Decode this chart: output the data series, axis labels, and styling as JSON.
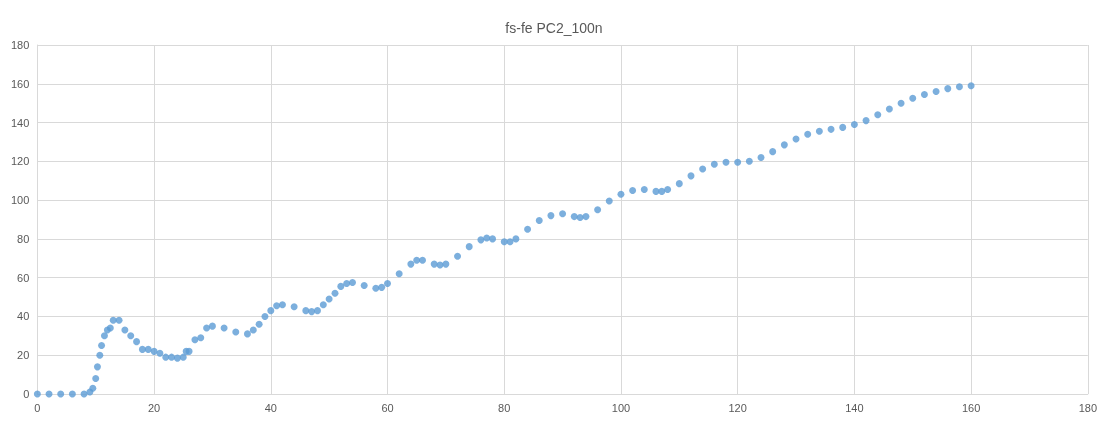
{
  "chart_data": {
    "type": "scatter",
    "title": "fs-fe PC2_100n",
    "xlim": [
      0,
      180
    ],
    "xticks": [
      0,
      20,
      40,
      60,
      80,
      100,
      120,
      140,
      160,
      180
    ],
    "ylim": [
      0,
      180
    ],
    "yticks": [
      0,
      20,
      40,
      60,
      80,
      100,
      120,
      140,
      160,
      180
    ],
    "grid": true,
    "marker": "circle",
    "series": [
      {
        "color": "#5b9bd5",
        "x": [
          0,
          2,
          4,
          6,
          8,
          9,
          9.5,
          10,
          10.3,
          10.7,
          11,
          11.5,
          12,
          12.5,
          13,
          14,
          15,
          16,
          17,
          18,
          19,
          20,
          21,
          22,
          23,
          24,
          25,
          25.5,
          26,
          27,
          28,
          29,
          30,
          32,
          34,
          36,
          37,
          38,
          39,
          40,
          41,
          42,
          44,
          46,
          47,
          48,
          49,
          50,
          51,
          52,
          53,
          54,
          56,
          58,
          59,
          60,
          62,
          64,
          65,
          66,
          68,
          69,
          70,
          72,
          74,
          76,
          77,
          78,
          80,
          81,
          82,
          84,
          86,
          88,
          90,
          92,
          93,
          94,
          96,
          98,
          100,
          102,
          104,
          106,
          107,
          108,
          110,
          112,
          114,
          116,
          118,
          120,
          122,
          124,
          126,
          128,
          130,
          132,
          134,
          136,
          138,
          140,
          142,
          144,
          146,
          148,
          150,
          152,
          154,
          156,
          158,
          160
        ],
        "values": [
          0,
          0,
          0,
          0,
          0,
          1,
          3,
          8,
          14,
          20,
          25,
          30,
          33,
          34,
          38,
          38,
          33,
          30,
          27,
          23,
          23,
          22,
          21,
          19,
          19,
          18.5,
          19,
          22,
          22,
          28,
          29,
          34,
          35,
          34,
          32,
          31,
          33,
          36,
          40,
          43,
          45.5,
          46,
          45,
          43,
          42.5,
          43,
          46,
          49,
          52,
          55.5,
          57,
          57.5,
          56,
          54.5,
          55,
          57,
          62,
          67,
          69,
          69,
          67,
          66.5,
          67,
          71,
          76,
          79.5,
          80.5,
          80,
          78.5,
          78.5,
          80,
          85,
          89.5,
          92,
          93,
          91.5,
          91,
          91.5,
          95,
          99.5,
          103,
          105,
          105.5,
          104.5,
          104.5,
          105.5,
          108.5,
          112.5,
          116,
          118.5,
          119.5,
          119.5,
          120,
          122,
          125,
          128.5,
          131.5,
          134,
          135.5,
          136.5,
          137.5,
          139,
          141,
          144,
          147,
          150,
          152.5,
          154.5,
          156,
          157.5,
          158.5,
          159
        ]
      }
    ]
  }
}
